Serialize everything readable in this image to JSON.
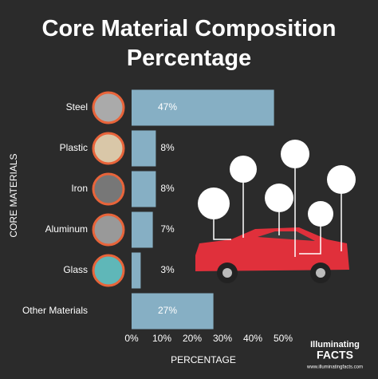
{
  "chart_data": {
    "type": "bar",
    "orientation": "horizontal",
    "title": "Core Material Composition Percentage",
    "categories": [
      "Steel",
      "Plastic",
      "Iron",
      "Aluminum",
      "Glass",
      "Other Materials"
    ],
    "values": [
      47,
      8,
      8,
      7,
      3,
      27
    ],
    "value_labels": [
      "47%",
      "8%",
      "8%",
      "7%",
      "3%",
      "27%"
    ],
    "color": "#86afc4",
    "xlim": [
      0,
      50
    ],
    "xticks": [
      {
        "value": 0,
        "label": "0%"
      },
      {
        "value": 10,
        "label": "10%"
      },
      {
        "value": 20,
        "label": "20%"
      },
      {
        "value": 30,
        "label": "30%"
      },
      {
        "value": 40,
        "label": "40%"
      },
      {
        "value": 50,
        "label": "50%"
      }
    ],
    "xlabel": "PERCENTAGE",
    "ylabel": "CORE MATERIALS",
    "grid": false
  },
  "brand": {
    "name": "Illuminating",
    "highlight": "FACTS",
    "url": "www.illuminatingfacts.com"
  }
}
